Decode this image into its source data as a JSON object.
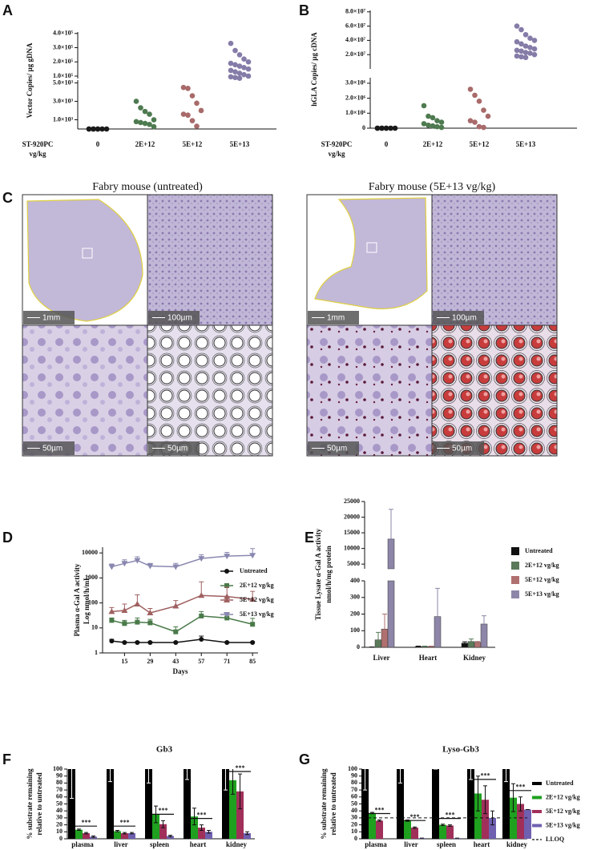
{
  "chart_data": [
    {
      "panel": "A",
      "type": "dot",
      "ylabel": "Vector Copies/ µg gDNA",
      "xlabel": [
        "ST-920PC",
        "vg/kg"
      ],
      "categories": [
        "0",
        "2E+12",
        "5E+12",
        "5E+13"
      ],
      "groups": [
        {
          "color": "#1a1a1a",
          "values": [
            0,
            0,
            0,
            0,
            0,
            0,
            0,
            0
          ]
        },
        {
          "color": "#4e7a50",
          "values": [
            3000,
            2300,
            1900,
            1600,
            1000,
            800,
            700,
            600,
            500,
            250
          ]
        },
        {
          "color": "#a86a6a",
          "values": [
            4500,
            4400,
            3600,
            2800,
            2000,
            1600,
            1500,
            900,
            300
          ]
        },
        {
          "color": "#857ca8",
          "values": [
            330000,
            280000,
            250000,
            220000,
            200000,
            190000,
            180000,
            170000,
            160000,
            150000,
            140000,
            130000,
            120000,
            110000,
            100000,
            95000,
            90000,
            85000
          ]
        }
      ],
      "yaxis": [
        {
          "ylim": [
            0,
            5300
          ],
          "yticks": [
            {
              "value": 1000,
              "label": "1.0×10³"
            },
            {
              "value": 3000,
              "label": "3.0×10³"
            },
            {
              "value": 5000,
              "label": "5.0×10³"
            }
          ]
        },
        {
          "ylim": [
            83000,
            410000
          ],
          "yticks": [
            {
              "value": 100000,
              "label": "1.0×10⁵"
            },
            {
              "value": 200000,
              "label": "2.0×10⁵"
            },
            {
              "value": 300000,
              "label": "3.0×10⁵"
            },
            {
              "value": 400000,
              "label": "4.0×10⁵"
            }
          ]
        }
      ]
    },
    {
      "panel": "B",
      "type": "dot",
      "ylabel": "hGLA Copies/ µg cDNA",
      "xlabel": [
        "ST-920PC",
        "vg/kg"
      ],
      "categories": [
        "0",
        "2E+12",
        "5E+12",
        "5E+13"
      ],
      "groups": [
        {
          "color": "#1a1a1a",
          "values": [
            0,
            0,
            0,
            0,
            0,
            0,
            0,
            0
          ]
        },
        {
          "color": "#4e7a50",
          "values": [
            1500000,
            800000,
            700000,
            500000,
            400000,
            300000,
            200000,
            150000,
            100000,
            50000
          ]
        },
        {
          "color": "#a86a6a",
          "values": [
            2600000,
            2200000,
            1800000,
            1200000,
            800000,
            500000,
            400000,
            100000,
            50000
          ]
        },
        {
          "color": "#857ca8",
          "values": [
            60000000,
            55000000,
            48000000,
            43000000,
            40000000,
            38000000,
            35000000,
            32000000,
            30000000,
            28000000,
            26000000,
            25000000,
            23000000,
            22000000,
            20000000,
            18000000,
            17000000,
            16000000
          ]
        }
      ],
      "yaxis": [
        {
          "ylim": [
            0,
            3370000
          ],
          "yticks": [
            0,
            {
              "value": 1000000,
              "label": "1.0×10⁶"
            },
            {
              "value": 2000000,
              "label": "2.0×10⁶"
            },
            {
              "value": 3000000,
              "label": "3.0×10⁶"
            }
          ]
        },
        {
          "ylim": [
            0,
            82000000
          ],
          "yticks": [
            {
              "value": 20000000,
              "label": "2.0×10⁷"
            },
            {
              "value": 40000000,
              "label": "4.0×10⁷"
            },
            {
              "value": 60000000,
              "label": "6.0×10⁷"
            },
            {
              "value": 80000000,
              "label": "8.0×10⁷"
            }
          ]
        }
      ]
    },
    {
      "panel": "D",
      "type": "line",
      "ylabel": [
        "Plasma α-Gal A activity",
        "Log nmol/h/mL"
      ],
      "xlabel": "Days",
      "yscale": "log",
      "ylim": [
        1,
        17000
      ],
      "yticks": [
        1,
        10,
        100,
        1000,
        10000
      ],
      "xlim": [
        3,
        88
      ],
      "xticks": [
        15,
        29,
        43,
        57,
        71,
        85
      ],
      "x": [
        8,
        15,
        22,
        29,
        43,
        57,
        71,
        85
      ],
      "series": [
        {
          "name": "Untreated",
          "color": "#111111",
          "marker": "circle",
          "values": [
            3,
            2.6,
            2.6,
            2.6,
            2.6,
            3.5,
            2.6,
            2.6
          ],
          "errors": [
            0.5,
            0.2,
            0.2,
            0.2,
            0.2,
            1.2,
            0.2,
            0.2
          ]
        },
        {
          "name": "2E+12 vg/kg",
          "color": "#4a7a4a",
          "marker": "square",
          "values": [
            20,
            15,
            17,
            16,
            7,
            30,
            25,
            14
          ],
          "errors": [
            5,
            5,
            8,
            6,
            4,
            15,
            12,
            10
          ]
        },
        {
          "name": "5E+12 vg/kg",
          "color": "#a06060",
          "marker": "triangle-up",
          "values": [
            45,
            50,
            90,
            40,
            75,
            200,
            180,
            140
          ],
          "errors": [
            20,
            40,
            120,
            20,
            50,
            500,
            250,
            150
          ]
        },
        {
          "name": "5E+13 vg/kg",
          "color": "#8a88b0",
          "marker": "triangle-down",
          "values": [
            2800,
            3800,
            5000,
            3000,
            2800,
            6000,
            7500,
            8000
          ],
          "errors": [
            800,
            1500,
            2000,
            800,
            1000,
            2500,
            3000,
            7000
          ]
        }
      ]
    },
    {
      "panel": "E",
      "type": "broken-bar",
      "ylabel": [
        "Tissue  Lysate α-Gal A activity",
        "nmol/h/mg protein"
      ],
      "categories": [
        "Liver",
        "Heart",
        "Kidney"
      ],
      "yaxis": [
        {
          "ylim": [
            0,
            400
          ],
          "yticks": [
            0,
            100,
            200,
            300,
            400
          ]
        },
        {
          "ylim": [
            3500,
            25000
          ],
          "yticks": [
            5000,
            10000,
            15000,
            20000,
            25000
          ]
        }
      ],
      "series": [
        {
          "name": "Untreated",
          "color": "#111111",
          "values": [
            2,
            5,
            25
          ],
          "errors": [
            0,
            2,
            8
          ]
        },
        {
          "name": "2E+12 vg/kg",
          "color": "#5a7a5a",
          "values": [
            45,
            5,
            35
          ],
          "errors": [
            45,
            2,
            15
          ]
        },
        {
          "name": "5E+12 vg/kg",
          "color": "#b07070",
          "values": [
            110,
            5,
            30
          ],
          "errors": [
            90,
            2,
            5
          ]
        },
        {
          "name": "5E+13 vg/kg",
          "color": "#8e86a8",
          "values": [
            13000,
            185,
            140
          ],
          "errors": [
            9500,
            170,
            50
          ]
        }
      ]
    },
    {
      "panel": "F",
      "type": "bar",
      "title": "Gb3",
      "ylabel": [
        "% substrate remaining",
        "relative to untreated"
      ],
      "categories": [
        "plasma",
        "liver",
        "spleen",
        "heart",
        "kidney"
      ],
      "ylim": [
        0,
        100
      ],
      "yticks": [
        0,
        10,
        20,
        30,
        40,
        50,
        60,
        70,
        80,
        90,
        100
      ],
      "series": [
        {
          "color": "#000000",
          "values": [
            100,
            100,
            100,
            100,
            100
          ],
          "errors": [
            42,
            18,
            20,
            15,
            30
          ]
        },
        {
          "color": "#1fa01f",
          "values": [
            13,
            11,
            35,
            32,
            84
          ],
          "errors": [
            1,
            1,
            12,
            12,
            20
          ]
        },
        {
          "color": "#a0305a",
          "values": [
            8,
            8,
            21,
            16,
            68
          ],
          "errors": [
            1,
            1,
            5,
            4,
            25
          ]
        },
        {
          "color": "#7060b0",
          "values": [
            3,
            8,
            4,
            10,
            8
          ],
          "errors": [
            1,
            1,
            1,
            2,
            2
          ]
        }
      ],
      "annotations": [
        "***",
        "***",
        "***",
        "***",
        "***"
      ]
    },
    {
      "panel": "G",
      "type": "bar",
      "title": "Lyso-Gb3",
      "ylabel": [
        "% substrate remaining",
        "relative to untreated"
      ],
      "categories": [
        "plasma",
        "liver",
        "spleen",
        "heart",
        "kidney"
      ],
      "ylim": [
        0,
        100
      ],
      "yticks": [
        0,
        10,
        20,
        30,
        40,
        50,
        60,
        70,
        80,
        90,
        100
      ],
      "series": [
        {
          "name": "Untreated",
          "color": "#000000",
          "values": [
            100,
            100,
            100,
            100,
            100
          ],
          "errors": [
            30,
            20,
            0,
            15,
            18
          ]
        },
        {
          "name": "2E+12 vg/kg",
          "color": "#1fa01f",
          "values": [
            37,
            26,
            20,
            65,
            59
          ],
          "errors": [
            1,
            1,
            1,
            25,
            20
          ]
        },
        {
          "name": "5E+12 vg/kg",
          "color": "#a0305a",
          "values": [
            26,
            16,
            19,
            56,
            50
          ],
          "errors": [
            1,
            1,
            1,
            20,
            10
          ]
        },
        {
          "name": "5E+13 vg/kg",
          "color": "#7060b0",
          "values": [
            0,
            1,
            1,
            30,
            42
          ],
          "errors": [
            0,
            0,
            0,
            10,
            0
          ]
        }
      ],
      "lloq": 30,
      "lloq_label": "LLOQ",
      "annotations": [
        "***",
        "***",
        "***",
        "***",
        "***"
      ]
    }
  ],
  "figure_c": {
    "panel": "C",
    "titles": [
      "Fabry mouse (untreated)",
      "Fabry mouse (5E+13 vg/kg)"
    ],
    "scalebars": [
      [
        "1mm",
        "100µm",
        "50µm",
        "50µm"
      ],
      [
        "1mm",
        "100µm",
        "50µm",
        "50µm"
      ]
    ]
  }
}
